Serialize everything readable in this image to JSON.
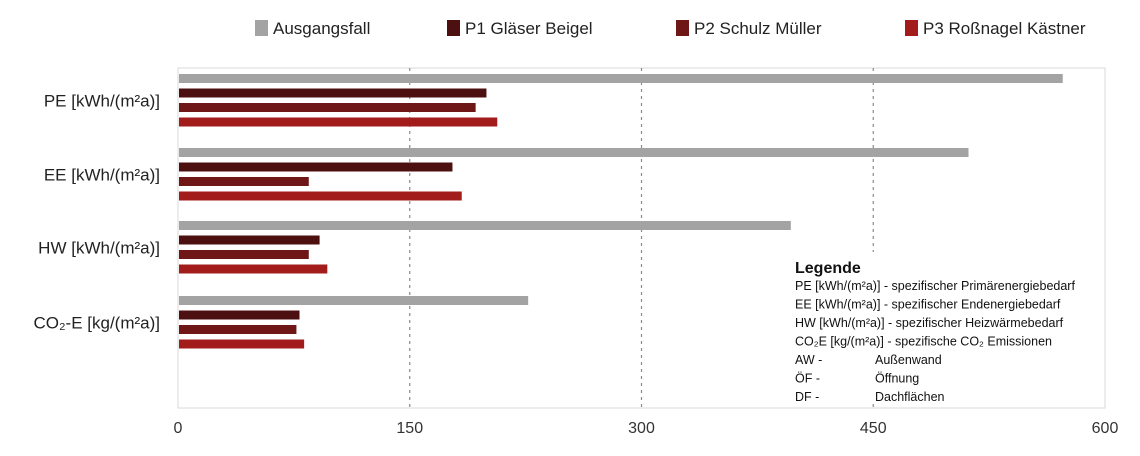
{
  "chart_data": {
    "type": "bar",
    "orientation": "horizontal",
    "categories": [
      "PE [kWh/(m²a)]",
      "EE [kWh/(m²a)]",
      "HW [kWh/(m²a)]",
      "CO₂-E  [kg/(m²a)]"
    ],
    "series": [
      {
        "name": "Ausgangsfall",
        "color": "#a3a3a3",
        "values": [
          572,
          511,
          396,
          226
        ]
      },
      {
        "name": "P1 Gläser Beigel",
        "color": "#4d1010",
        "values": [
          199,
          177,
          91,
          78
        ]
      },
      {
        "name": "P2 Schulz Müller",
        "color": "#6f1616",
        "values": [
          192,
          84,
          84,
          76
        ]
      },
      {
        "name": "P3 Roßnagel Kästner",
        "color": "#a31c1c",
        "values": [
          206,
          183,
          96,
          81
        ]
      }
    ],
    "xlim": [
      0,
      600
    ],
    "xticks": [
      "0",
      "150",
      "300",
      "450",
      "600"
    ],
    "grid": "vertical dashed",
    "legend_position": "top",
    "annotation": {
      "title": "Legende",
      "lines": [
        "PE [kWh/(m²a)] - spezifischer Primärenergiebedarf",
        "EE [kWh/(m²a)] - spezifischer Endenergiebedarf",
        "HW [kWh/(m²a)] - spezifischer Heizwärmebedarf",
        "CO₂E [kg/(m²a)] - spezifische CO₂ Emissionen"
      ],
      "abbreviations": [
        {
          "key": "AW -",
          "value": "Außenwand"
        },
        {
          "key": "ÖF -",
          "value": "Öffnung"
        },
        {
          "key": "DF -",
          "value": "Dachflächen"
        }
      ]
    }
  }
}
